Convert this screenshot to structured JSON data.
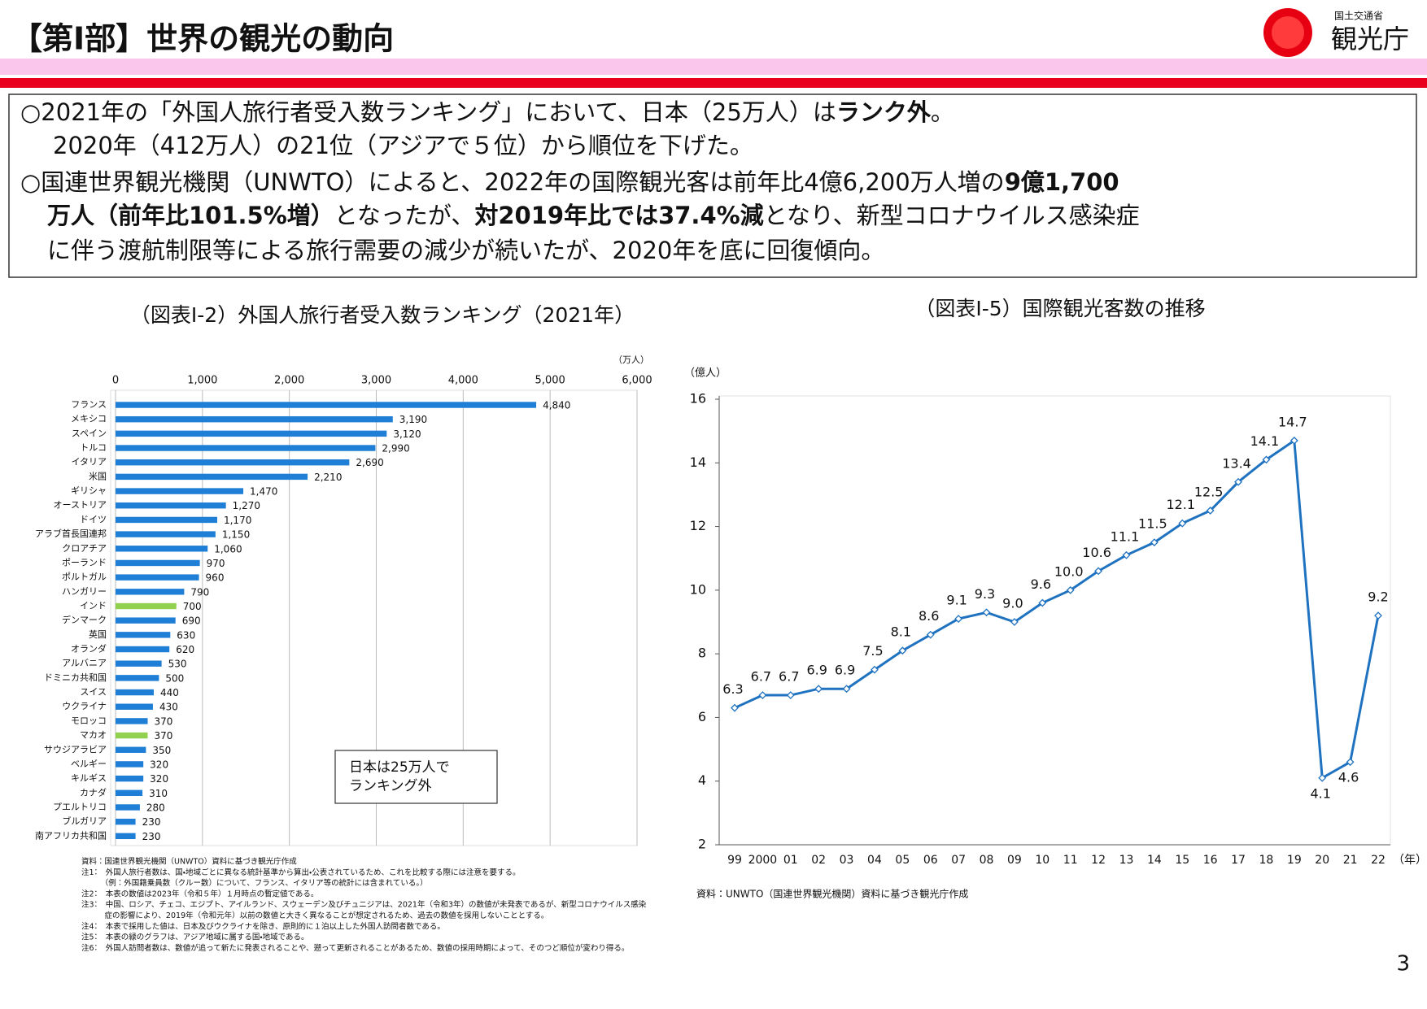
{
  "header": {
    "title": "【第Ⅰ部】世界の観光の動向",
    "logo_ministry": "国土交通省",
    "logo_agency": "観光庁"
  },
  "summary": {
    "lines": [
      [
        {
          "text": "○2021年の「外国人旅行者受入数ランキング」において、日本（25万人）は"
        },
        {
          "text": "ランク外",
          "bold": true
        },
        {
          "text": "。"
        }
      ],
      [
        {
          "text": "2020年（412万人）の21位（アジアで５位）から順位を下げた。"
        }
      ],
      [
        {
          "text": "○国連世界観光機関（UNWTO）によると、2022年の国際観光客は前年比4億6,200万人増の"
        },
        {
          "text": "9億1,700",
          "bold": true
        }
      ],
      [
        {
          "text": "万人（前年比101.5%増）",
          "bold": true
        },
        {
          "text": "となったが、"
        },
        {
          "text": "対2019年比では37.4%減",
          "bold": true
        },
        {
          "text": "となり、新型コロナウイルス感染症"
        }
      ],
      [
        {
          "text": "に伴う渡航制限等による旅行需要の減少が続いたが、2020年を底に回復傾向。"
        }
      ]
    ]
  },
  "chart_data": [
    {
      "type": "bar",
      "orientation": "horizontal",
      "title": "（図表Ⅰ-2）外国人旅行者受入数ランキング（2021年）",
      "unit_label": "（万人）",
      "categories": [
        "フランス",
        "メキシコ",
        "スペイン",
        "トルコ",
        "イタリア",
        "米国",
        "ギリシャ",
        "オーストリア",
        "ドイツ",
        "アラブ首長国連邦",
        "クロアチア",
        "ポーランド",
        "ポルトガル",
        "ハンガリー",
        "インド",
        "デンマーク",
        "英国",
        "オランダ",
        "アルバニア",
        "ドミニカ共和国",
        "スイス",
        "ウクライナ",
        "モロッコ",
        "マカオ",
        "サウジアラビア",
        "ベルギー",
        "キルギス",
        "カナダ",
        "プエルトリコ",
        "ブルガリア",
        "南アフリカ共和国"
      ],
      "values": [
        4840,
        3190,
        3120,
        2990,
        2690,
        2210,
        1470,
        1270,
        1170,
        1150,
        1060,
        970,
        960,
        790,
        700,
        690,
        630,
        620,
        530,
        500,
        440,
        430,
        370,
        370,
        350,
        320,
        320,
        310,
        280,
        230,
        230
      ],
      "value_labels": [
        "4,840",
        "3,190",
        "3,120",
        "2,990",
        "2,690",
        "2,210",
        "1,470",
        "1,270",
        "1,170",
        "1,150",
        "1,060",
        "970",
        "960",
        "790",
        "700",
        "690",
        "630",
        "620",
        "530",
        "500",
        "440",
        "430",
        "370",
        "370",
        "350",
        "320",
        "320",
        "310",
        "280",
        "230",
        "230"
      ],
      "colors": [
        "#1f7fd6",
        "#1f7fd6",
        "#1f7fd6",
        "#1f7fd6",
        "#1f7fd6",
        "#1f7fd6",
        "#1f7fd6",
        "#1f7fd6",
        "#1f7fd6",
        "#1f7fd6",
        "#1f7fd6",
        "#1f7fd6",
        "#1f7fd6",
        "#1f7fd6",
        "#92d050",
        "#1f7fd6",
        "#1f7fd6",
        "#1f7fd6",
        "#1f7fd6",
        "#1f7fd6",
        "#1f7fd6",
        "#1f7fd6",
        "#1f7fd6",
        "#92d050",
        "#1f7fd6",
        "#1f7fd6",
        "#1f7fd6",
        "#1f7fd6",
        "#1f7fd6",
        "#1f7fd6",
        "#1f7fd6"
      ],
      "xlim": [
        0,
        6000
      ],
      "xticks": [
        0,
        {
          "value": 1000,
          "label": "1,000"
        },
        {
          "value": 2000,
          "label": "2,000"
        },
        {
          "value": 3000,
          "label": "3,000"
        },
        {
          "value": 4000,
          "label": "4,000"
        },
        {
          "value": 5000,
          "label": "5,000"
        },
        {
          "value": 6000,
          "label": "6,000"
        }
      ],
      "grid": true,
      "annotation": [
        "日本は25万人で",
        "ランキング外"
      ],
      "notes": [
        "資料：国連世界観光機関（UNWTO）資料に基づき観光庁作成",
        "注1：　外国人旅行者数は、国・地域ごとに異なる統計基準から算出・公表されているため、これを比較する際には注意を要する。",
        "　　　（例：外国籍乗員数（クルー数）について、フランス、イタリア等の統計には含まれている。）",
        "注2：　本表の数値は2023年（令和５年）１月時点の暫定値である。",
        "注3：　中国、ロシア、チェコ、エジプト、アイルランド、スウェーデン及びチュニジアは、2021年（令和3年）の数値が未発表であるが、新型コロナウイルス感染",
        "　　　症の影響により、2019年（令和元年）以前の数値と大きく異なることが想定されるため、過去の数値を採用しないこととする。",
        "注4：　本表で採用した値は、日本及びウクライナを除き、原則的に１泊以上した外国人訪問者数である。",
        "注5：　本表の緑のグラフは、アジア地域に属する国・地域である。",
        "注6：　外国人訪問者数は、数値が追って新たに発表されることや、遡って更新されることがあるため、数値の採用時期によって、そのつど順位が変わり得る。"
      ]
    },
    {
      "type": "line",
      "title": "（図表Ⅰ-5）国際観光客数の推移",
      "y_unit_label": "（億人）",
      "x_unit_label": "（年）",
      "categories": [
        "99",
        "2000",
        "01",
        "02",
        "03",
        "04",
        "05",
        "06",
        "07",
        "08",
        "09",
        "10",
        "11",
        "12",
        "13",
        "14",
        "15",
        "16",
        "17",
        "18",
        "19",
        "20",
        "21",
        "22"
      ],
      "values": [
        6.3,
        6.7,
        6.7,
        6.9,
        6.9,
        7.5,
        8.1,
        8.6,
        9.1,
        9.3,
        9.0,
        9.6,
        10.0,
        10.6,
        11.1,
        11.5,
        12.1,
        12.5,
        13.4,
        14.1,
        14.7,
        4.1,
        4.6,
        9.2
      ],
      "value_labels": [
        "6.3",
        "6.7",
        "6.7",
        "6.9",
        "6.9",
        "7.5",
        "8.1",
        "8.6",
        "9.1",
        "9.3",
        "9.0",
        "9.6",
        "10.0",
        "10.6",
        "11.1",
        "11.5",
        "12.1",
        "12.5",
        "13.4",
        "14.1",
        "14.7",
        "4.1",
        "4.6",
        "9.2"
      ],
      "color": "#1f72c0",
      "ylim": [
        2,
        16
      ],
      "yticks": [
        2,
        4,
        6,
        8,
        10,
        12,
        14,
        16
      ],
      "source": "資料：UNWTO（国連世界観光機関）資料に基づき観光庁作成"
    }
  ],
  "page_number": "3"
}
